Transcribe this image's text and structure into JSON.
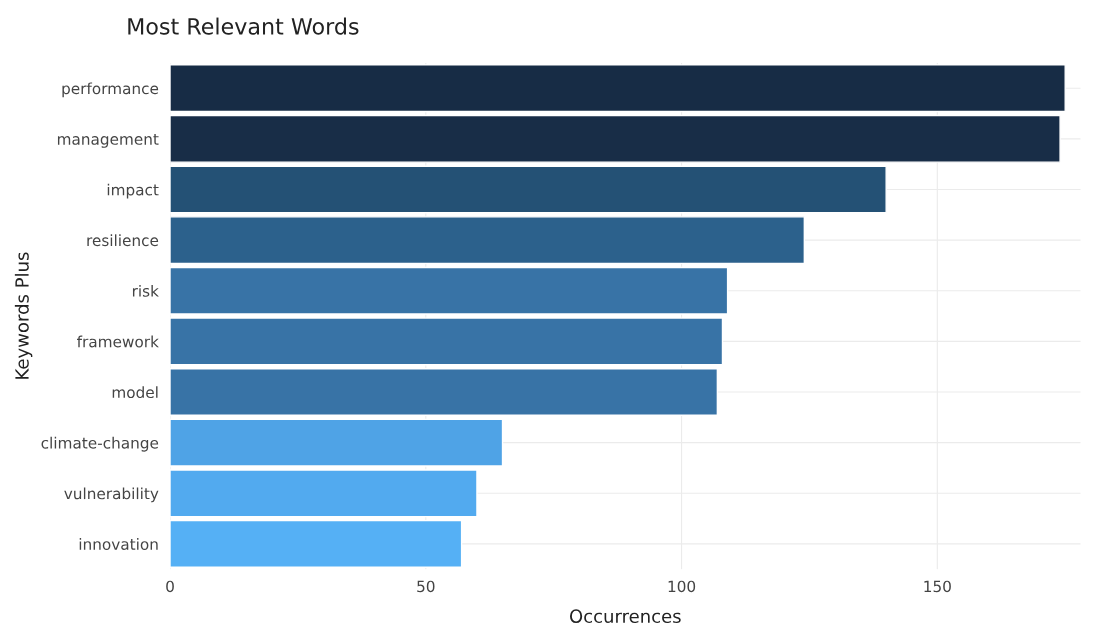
{
  "chart_data": {
    "type": "bar",
    "orientation": "horizontal",
    "title": "Most Relevant Words",
    "xlabel": "Occurrences",
    "ylabel": "Keywords Plus",
    "categories": [
      "performance",
      "management",
      "impact",
      "resilience",
      "risk",
      "framework",
      "model",
      "climate-change",
      "vulnerability",
      "innovation"
    ],
    "values": [
      175,
      174,
      140,
      124,
      109,
      108,
      107,
      65,
      60,
      57
    ],
    "colors": [
      "#172c45",
      "#182d47",
      "#245175",
      "#2c618c",
      "#3873a6",
      "#3873a6",
      "#3873a6",
      "#4fa3e6",
      "#52aaef",
      "#55b0f5"
    ],
    "xlim": [
      0,
      178
    ],
    "xticks": [
      0,
      50,
      100,
      150
    ],
    "grid": true
  }
}
